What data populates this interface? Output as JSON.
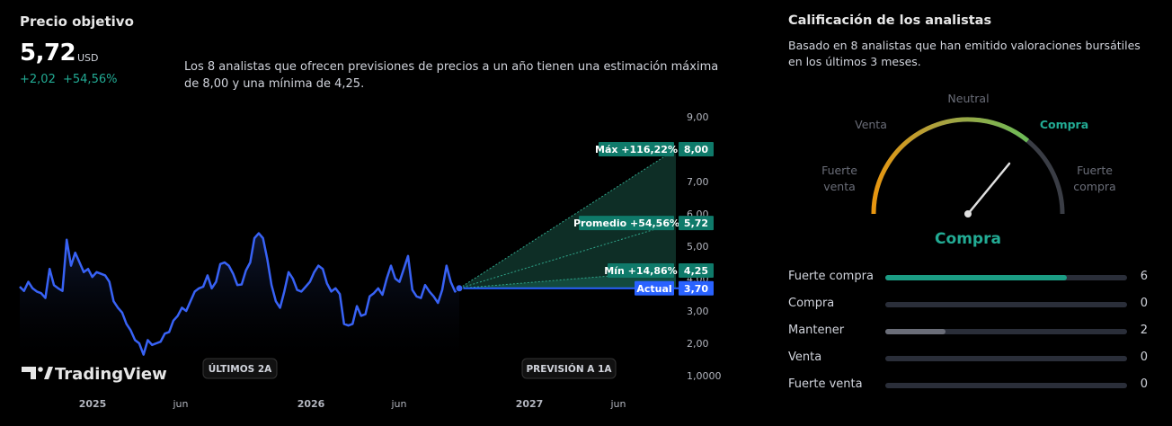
{
  "header": {
    "title": "Precio objetivo",
    "price": "5,72",
    "currency": "USD",
    "change_abs": "+2,02",
    "change_pct": "+54,56%"
  },
  "description": "Los 8 analistas que ofrecen previsiones de precios a un año tienen una estimación máxima de 8,00 y una mínima de 4,25.",
  "chart_data": {
    "type": "line",
    "y_ticks": [
      "9,00",
      "7,00",
      "6,00",
      "5,00",
      "4,00",
      "3,00",
      "2,00",
      "1,0000"
    ],
    "ylim": [
      1,
      9
    ],
    "x_ticks": [
      "2025",
      "jun",
      "2026",
      "jun",
      "2027",
      "jun"
    ],
    "buttons": {
      "history": "ÚLTIMOS 2A",
      "forecast": "PREVISIÓN A 1A"
    },
    "logo_text": "TradingView",
    "series": [
      {
        "values": [
          3.75,
          3.62,
          3.9,
          3.7,
          3.6,
          3.55,
          3.4,
          4.3,
          3.8,
          3.7,
          3.62,
          5.2,
          4.4,
          4.8,
          4.5,
          4.2,
          4.3,
          4.05,
          4.2,
          4.15,
          4.1,
          3.9,
          3.3,
          3.1,
          2.95,
          2.6,
          2.4,
          2.1,
          2.0,
          1.65,
          2.1,
          1.95,
          2.0,
          2.05,
          2.3,
          2.35,
          2.7,
          2.85,
          3.1,
          3.0,
          3.3,
          3.6,
          3.7,
          3.75,
          4.1,
          3.7,
          3.9,
          4.45,
          4.5,
          4.4,
          4.15,
          3.8,
          3.82,
          4.25,
          4.5,
          5.25,
          5.4,
          5.25,
          4.6,
          3.8,
          3.3,
          3.1,
          3.6,
          4.2,
          4.0,
          3.65,
          3.6,
          3.75,
          3.9,
          4.2,
          4.4,
          4.3,
          3.85,
          3.6,
          3.7,
          3.52,
          2.6,
          2.55,
          2.6,
          3.15,
          2.85,
          2.9,
          3.45,
          3.55,
          3.7,
          3.5,
          4.0,
          4.4,
          4.0,
          3.9,
          4.3,
          4.7,
          3.65,
          3.45,
          3.4,
          3.8,
          3.6,
          3.45,
          3.25,
          3.65,
          4.4,
          3.9,
          3.6,
          3.7
        ]
      }
    ],
    "current": {
      "label": "Actual",
      "value": 3.7,
      "value_text": "3,70"
    },
    "targets": [
      {
        "label": "Máx +116,22%",
        "value": 8.0,
        "value_text": "8,00"
      },
      {
        "label": "Promedio +54,56%",
        "value": 5.72,
        "value_text": "5,72"
      },
      {
        "label": "Mín +14,86%",
        "value": 4.25,
        "value_text": "4,25"
      }
    ],
    "colors": {
      "line": "#3862f5",
      "target": "#0f7a6a",
      "current": "#2962ff",
      "cone": "#0e2e26"
    }
  },
  "ratings": {
    "title": "Calificación de los analistas",
    "subtitle": "Basado en 8 analistas que han emitido valoraciones bursátiles en los últimos 3 meses.",
    "gauge_labels": {
      "strong_sell": "Fuerte\nventa",
      "sell": "Venta",
      "neutral": "Neutral",
      "buy": "Compra",
      "strong_buy": "Fuerte\ncompra"
    },
    "verdict": "Compra",
    "rows": [
      {
        "label": "Fuerte compra",
        "count": 6,
        "fraction": 0.75,
        "color": "#1b9c84"
      },
      {
        "label": "Compra",
        "count": 0,
        "fraction": 0,
        "color": "#1b9c84"
      },
      {
        "label": "Mantener",
        "count": 2,
        "fraction": 0.25,
        "color": "#6a6d78"
      },
      {
        "label": "Venta",
        "count": 0,
        "fraction": 0,
        "color": "#6a6d78"
      },
      {
        "label": "Fuerte venta",
        "count": 0,
        "fraction": 0,
        "color": "#6a6d78"
      }
    ]
  }
}
